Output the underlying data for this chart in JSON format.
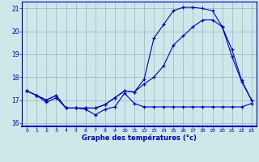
{
  "xlabel": "Graphe des températures (°c)",
  "bg_color": "#cce8e8",
  "grid_color": "#aaaacc",
  "line_color": "#0000bb",
  "border_color": "#0000bb",
  "x_hours": [
    0,
    1,
    2,
    3,
    4,
    5,
    6,
    7,
    8,
    9,
    10,
    11,
    12,
    13,
    14,
    15,
    16,
    17,
    18,
    19,
    20,
    21,
    22,
    23
  ],
  "line1": [
    17.4,
    17.2,
    16.9,
    17.1,
    16.65,
    16.65,
    16.6,
    16.35,
    16.6,
    16.7,
    17.3,
    16.85,
    16.7,
    16.7,
    16.7,
    16.7,
    16.7,
    16.7,
    16.7,
    16.7,
    16.7,
    16.7,
    16.7,
    16.85
  ],
  "line2": [
    17.4,
    17.2,
    17.0,
    17.2,
    16.65,
    16.65,
    16.65,
    16.65,
    16.8,
    17.1,
    17.4,
    17.35,
    17.7,
    18.0,
    18.5,
    19.4,
    19.8,
    20.2,
    20.5,
    20.5,
    20.2,
    18.9,
    17.8,
    17.0
  ],
  "line3": [
    17.4,
    17.2,
    17.0,
    17.2,
    16.65,
    16.65,
    16.65,
    16.65,
    16.8,
    17.1,
    17.4,
    17.35,
    17.9,
    19.7,
    20.3,
    20.9,
    21.05,
    21.05,
    21.0,
    20.9,
    20.2,
    19.2,
    17.85,
    17.0
  ],
  "ylim": [
    15.85,
    21.3
  ],
  "yticks": [
    16,
    17,
    18,
    19,
    20,
    21
  ],
  "xticks": [
    0,
    1,
    2,
    3,
    4,
    5,
    6,
    7,
    8,
    9,
    10,
    11,
    12,
    13,
    14,
    15,
    16,
    17,
    18,
    19,
    20,
    21,
    22,
    23
  ]
}
